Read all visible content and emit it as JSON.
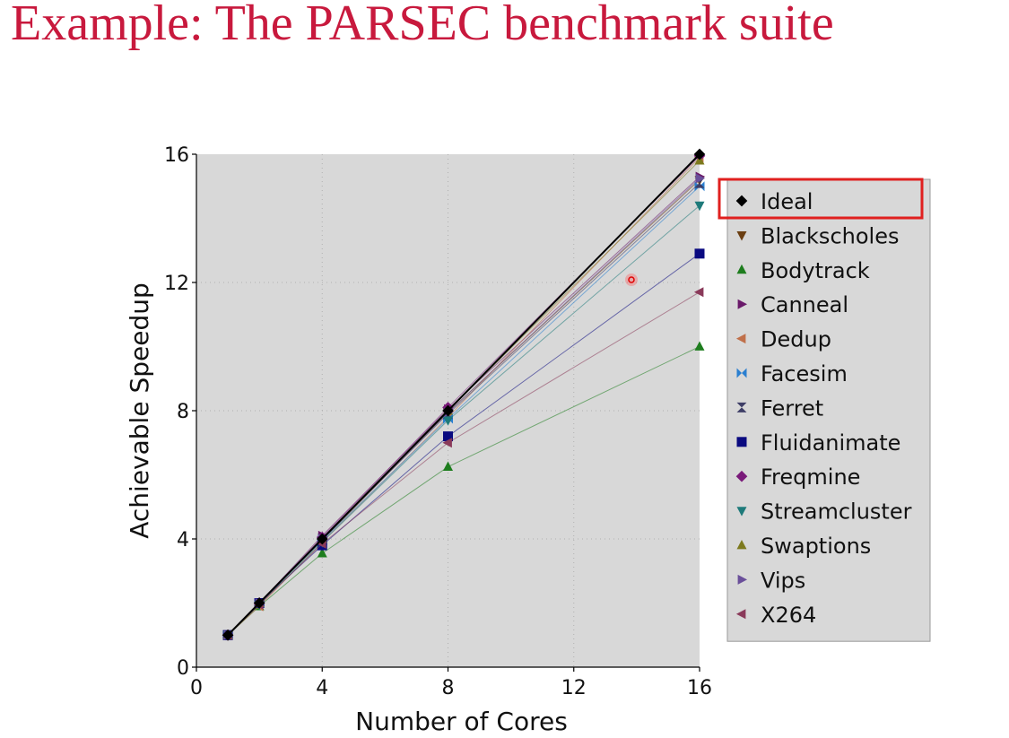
{
  "slide": {
    "title": "Example: The PARSEC benchmark suite"
  },
  "chart_data": {
    "type": "line",
    "title": "",
    "xlabel": "Number of Cores",
    "ylabel": "Achievable Speedup",
    "xlim": [
      0,
      16
    ],
    "ylim": [
      0,
      16
    ],
    "xticks": [
      0,
      4,
      8,
      12,
      16
    ],
    "yticks": [
      0,
      4,
      8,
      12,
      16
    ],
    "grid": true,
    "legend_position": "right",
    "highlighted_legend_entry": "Ideal",
    "highlight_color": "#e0201f",
    "background_color": "#d8d8d8",
    "x": [
      1,
      2,
      4,
      8,
      16
    ],
    "series": [
      {
        "name": "Ideal",
        "marker": "diamond",
        "color": "#000000",
        "values": [
          1,
          2,
          4,
          8,
          16
        ]
      },
      {
        "name": "Blackscholes",
        "marker": "triangle-down",
        "color": "#6b3f12",
        "values": [
          1,
          2,
          3.95,
          7.95,
          15.2
        ]
      },
      {
        "name": "Bodytrack",
        "marker": "triangle-up",
        "color": "#1e7d1e",
        "values": [
          1,
          1.9,
          3.55,
          6.25,
          10
        ]
      },
      {
        "name": "Canneal",
        "marker": "triangle-right",
        "color": "#6a1a6a",
        "values": [
          1,
          2,
          4.1,
          8.05,
          15.3
        ]
      },
      {
        "name": "Dedup",
        "marker": "triangle-left",
        "color": "#c0704a",
        "values": [
          1,
          1.9,
          3.9,
          7.8,
          15.9
        ]
      },
      {
        "name": "Facesim",
        "marker": "bowtie",
        "color": "#2a7fd0",
        "values": [
          1,
          2,
          3.95,
          7.75,
          15
        ]
      },
      {
        "name": "Ferret",
        "marker": "hourglass",
        "color": "#3d3d66",
        "values": [
          1,
          2,
          4,
          7.9,
          15.1
        ]
      },
      {
        "name": "Fluidanimate",
        "marker": "square",
        "color": "#0a0a80",
        "values": [
          1,
          2,
          3.8,
          7.2,
          12.9
        ]
      },
      {
        "name": "Freqmine",
        "marker": "diamond",
        "color": "#7a1a7a",
        "values": [
          1,
          2,
          4.05,
          8.1,
          15.95
        ]
      },
      {
        "name": "Streamcluster",
        "marker": "triangle-down",
        "color": "#1e7a7a",
        "values": [
          1,
          1.95,
          3.9,
          7.7,
          14.4
        ]
      },
      {
        "name": "Swaptions",
        "marker": "triangle-up",
        "color": "#7d7a1e",
        "values": [
          1,
          2,
          4,
          8,
          15.8
        ]
      },
      {
        "name": "Vips",
        "marker": "triangle-right",
        "color": "#6a4f9a",
        "values": [
          1,
          2,
          4,
          7.95,
          15.25
        ]
      },
      {
        "name": "X264",
        "marker": "triangle-left",
        "color": "#8a3a5a",
        "values": [
          1,
          1.95,
          3.85,
          7,
          11.7
        ]
      }
    ]
  }
}
